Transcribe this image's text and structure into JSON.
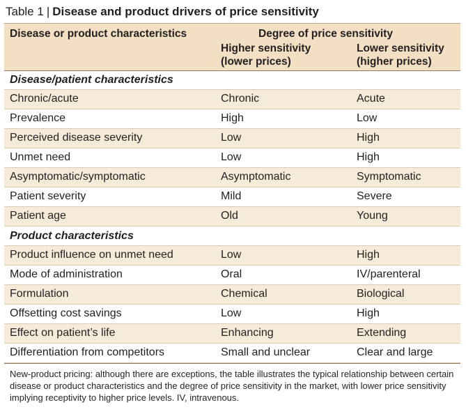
{
  "title": {
    "number": "Table 1",
    "separator": "|",
    "text": "Disease and product drivers of price sensitivity"
  },
  "header": {
    "col1": "Disease or product characteristics",
    "degree": "Degree of price sensitivity",
    "higher_line1": "Higher sensitivity",
    "higher_line2": "(lower prices)",
    "lower_line1": "Lower sensitivity",
    "lower_line2": "(higher prices)"
  },
  "sections": [
    {
      "title": "Disease/patient characteristics",
      "rows": [
        [
          "Chronic/acute",
          "Chronic",
          "Acute"
        ],
        [
          "Prevalence",
          "High",
          "Low"
        ],
        [
          "Perceived disease severity",
          "Low",
          "High"
        ],
        [
          "Unmet need",
          "Low",
          "High"
        ],
        [
          "Asymptomatic/symptomatic",
          "Asymptomatic",
          "Symptomatic"
        ],
        [
          "Patient severity",
          "Mild",
          "Severe"
        ],
        [
          "Patient age",
          "Old",
          "Young"
        ]
      ]
    },
    {
      "title": "Product characteristics",
      "rows": [
        [
          "Product influence on unmet need",
          "Low",
          "High"
        ],
        [
          "Mode of administration",
          "Oral",
          "IV/parenteral"
        ],
        [
          "Formulation",
          "Chemical",
          "Biological"
        ],
        [
          "Offsetting cost savings",
          "Low",
          "High"
        ],
        [
          "Effect on patient’s life",
          "Enhancing",
          "Extending"
        ],
        [
          "Differentiation from competitors",
          "Small and unclear",
          "Clear and large"
        ]
      ]
    }
  ],
  "footnote": "New-product pricing: although there are exceptions, the table illustrates the typical relationship between certain disease or product characteristics and the degree of price sensitivity in the market, with lower price sensitivity implying receptivity to higher price levels. IV, intravenous.",
  "colors": {
    "header_bg": "#f2dfc4",
    "shaded_row": "#f6ead8"
  }
}
